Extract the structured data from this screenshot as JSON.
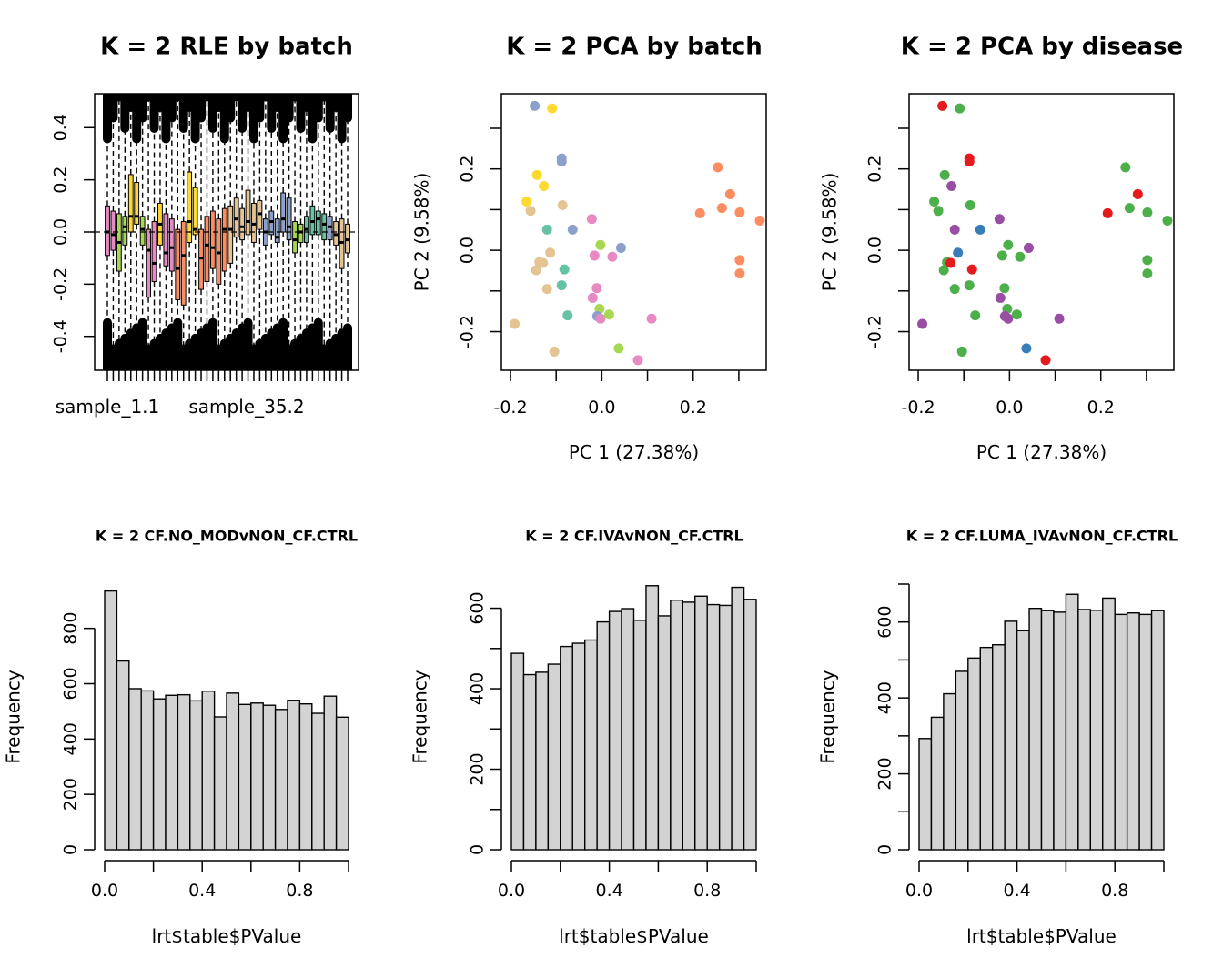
{
  "chart_data": [
    {
      "type": "boxplot",
      "title": "K = 2 RLE by batch",
      "xlabel": "",
      "ylabel": "",
      "ylim": [
        -0.53,
        0.53
      ],
      "yticks": [
        -0.4,
        -0.2,
        0.0,
        0.2,
        0.4
      ],
      "ytick_labels": [
        "-0.4",
        "-0.2",
        "0.0",
        "0.2",
        "0.4"
      ],
      "xtick_labels": [
        "sample_1.1",
        "sample_35.2"
      ],
      "hline": 0,
      "batch_colors": [
        "#E78AC3",
        "#A6D854",
        "#FFD92F",
        "#E78AC3",
        "#FC8D62",
        "#E5C494",
        "#8DA0CB",
        "#66C2A5",
        "#A6D854",
        "#E5C494"
      ],
      "boxes": [
        {
          "c": 0,
          "q1": -0.09,
          "med": 0.0,
          "q3": 0.1
        },
        {
          "c": 0,
          "q1": -0.07,
          "med": -0.01,
          "q3": 0.08
        },
        {
          "c": 1,
          "q1": -0.15,
          "med": -0.04,
          "q3": 0.07
        },
        {
          "c": 1,
          "q1": -0.05,
          "med": 0.02,
          "q3": 0.06
        },
        {
          "c": 2,
          "q1": 0.0,
          "med": 0.06,
          "q3": 0.22
        },
        {
          "c": 2,
          "q1": 0.03,
          "med": 0.06,
          "q3": 0.19
        },
        {
          "c": 1,
          "q1": -0.05,
          "med": 0.01,
          "q3": 0.06
        },
        {
          "c": 0,
          "q1": -0.25,
          "med": -0.07,
          "q3": 0.01
        },
        {
          "c": 0,
          "q1": -0.19,
          "med": -0.12,
          "q3": 0.04
        },
        {
          "c": 2,
          "q1": -0.05,
          "med": 0.03,
          "q3": 0.11
        },
        {
          "c": 0,
          "q1": -0.13,
          "med": -0.08,
          "q3": 0.07
        },
        {
          "c": 0,
          "q1": -0.15,
          "med": -0.06,
          "q3": 0.05
        },
        {
          "c": 4,
          "q1": -0.26,
          "med": -0.14,
          "q3": 0.01
        },
        {
          "c": 4,
          "q1": -0.28,
          "med": -0.09,
          "q3": 0.04
        },
        {
          "c": 2,
          "q1": -0.04,
          "med": 0.04,
          "q3": 0.23
        },
        {
          "c": 2,
          "q1": -0.01,
          "med": 0.01,
          "q3": 0.17
        },
        {
          "c": 4,
          "q1": -0.22,
          "med": -0.1,
          "q3": 0.01
        },
        {
          "c": 4,
          "q1": -0.19,
          "med": -0.05,
          "q3": 0.06
        },
        {
          "c": 4,
          "q1": -0.14,
          "med": -0.06,
          "q3": 0.08
        },
        {
          "c": 4,
          "q1": -0.2,
          "med": -0.08,
          "q3": 0.05
        },
        {
          "c": 4,
          "q1": -0.15,
          "med": 0.01,
          "q3": 0.09
        },
        {
          "c": 5,
          "q1": -0.12,
          "med": 0.01,
          "q3": 0.1
        },
        {
          "c": 5,
          "q1": -0.02,
          "med": 0.05,
          "q3": 0.13
        },
        {
          "c": 5,
          "q1": -0.03,
          "med": 0.02,
          "q3": 0.09
        },
        {
          "c": 5,
          "q1": -0.01,
          "med": 0.04,
          "q3": 0.16
        },
        {
          "c": 5,
          "q1": -0.04,
          "med": 0.03,
          "q3": 0.11
        },
        {
          "c": 5,
          "q1": 0.01,
          "med": 0.07,
          "q3": 0.12
        },
        {
          "c": 6,
          "q1": -0.05,
          "med": 0.0,
          "q3": 0.05
        },
        {
          "c": 6,
          "q1": -0.01,
          "med": 0.04,
          "q3": 0.08
        },
        {
          "c": 6,
          "q1": -0.04,
          "med": -0.02,
          "q3": 0.05
        },
        {
          "c": 6,
          "q1": 0.0,
          "med": 0.05,
          "q3": 0.15
        },
        {
          "c": 6,
          "q1": -0.03,
          "med": 0.02,
          "q3": 0.13
        },
        {
          "c": 8,
          "q1": -0.08,
          "med": -0.03,
          "q3": 0.04
        },
        {
          "c": 8,
          "q1": -0.04,
          "med": 0.0,
          "q3": 0.03
        },
        {
          "c": 7,
          "q1": -0.04,
          "med": 0.01,
          "q3": 0.06
        },
        {
          "c": 7,
          "q1": -0.01,
          "med": 0.04,
          "q3": 0.1
        },
        {
          "c": 7,
          "q1": -0.01,
          "med": 0.05,
          "q3": 0.08
        },
        {
          "c": 7,
          "q1": -0.03,
          "med": 0.03,
          "q3": 0.07
        },
        {
          "c": 6,
          "q1": -0.03,
          "med": 0.02,
          "q3": 0.06
        },
        {
          "c": 9,
          "q1": -0.05,
          "med": -0.01,
          "q3": 0.04
        },
        {
          "c": 9,
          "q1": -0.14,
          "med": -0.04,
          "q3": 0.05
        },
        {
          "c": 9,
          "q1": -0.08,
          "med": -0.03,
          "q3": 0.03
        }
      ]
    },
    {
      "type": "scatter",
      "title": "K = 2 PCA by batch",
      "xlabel": "PC 1 (27.38%)",
      "ylabel": "PC 2 (9.58%)",
      "xlim": [
        -0.22,
        0.36
      ],
      "ylim": [
        -0.295,
        0.385
      ],
      "xticks": [
        -0.2,
        0.0,
        0.2
      ],
      "xtick_labels": [
        "-0.2",
        "0.0",
        "0.2"
      ],
      "yticks": [
        -0.2,
        0.0,
        0.2
      ],
      "ytick_labels": [
        "-0.2",
        "0.0",
        "0.2"
      ],
      "points": [
        {
          "x": -0.147,
          "y": 0.355,
          "color": "#8DA0CB"
        },
        {
          "x": -0.109,
          "y": 0.349,
          "color": "#FFD92F"
        },
        {
          "x": -0.088,
          "y": 0.226,
          "color": "#8DA0CB"
        },
        {
          "x": -0.088,
          "y": 0.218,
          "color": "#8DA0CB"
        },
        {
          "x": -0.142,
          "y": 0.185,
          "color": "#FFD92F"
        },
        {
          "x": -0.127,
          "y": 0.158,
          "color": "#FFD92F"
        },
        {
          "x": -0.165,
          "y": 0.12,
          "color": "#FFD92F"
        },
        {
          "x": -0.086,
          "y": 0.111,
          "color": "#E5C494"
        },
        {
          "x": -0.156,
          "y": 0.097,
          "color": "#E5C494"
        },
        {
          "x": -0.12,
          "y": 0.051,
          "color": "#66C2A5"
        },
        {
          "x": -0.064,
          "y": 0.051,
          "color": "#8DA0CB"
        },
        {
          "x": -0.022,
          "y": 0.077,
          "color": "#E78AC3"
        },
        {
          "x": -0.003,
          "y": 0.013,
          "color": "#A6D854"
        },
        {
          "x": 0.042,
          "y": 0.006,
          "color": "#8DA0CB"
        },
        {
          "x": -0.113,
          "y": -0.006,
          "color": "#E5C494"
        },
        {
          "x": -0.016,
          "y": -0.013,
          "color": "#E78AC3"
        },
        {
          "x": 0.023,
          "y": -0.016,
          "color": "#E78AC3"
        },
        {
          "x": -0.137,
          "y": -0.029,
          "color": "#E5C494"
        },
        {
          "x": -0.129,
          "y": -0.031,
          "color": "#E5C494"
        },
        {
          "x": -0.144,
          "y": -0.049,
          "color": "#E5C494"
        },
        {
          "x": -0.082,
          "y": -0.047,
          "color": "#66C2A5"
        },
        {
          "x": -0.088,
          "y": -0.086,
          "color": "#66C2A5"
        },
        {
          "x": -0.12,
          "y": -0.095,
          "color": "#E5C494"
        },
        {
          "x": -0.011,
          "y": -0.093,
          "color": "#E78AC3"
        },
        {
          "x": -0.02,
          "y": -0.117,
          "color": "#E78AC3"
        },
        {
          "x": -0.005,
          "y": -0.144,
          "color": "#A6D854"
        },
        {
          "x": -0.075,
          "y": -0.16,
          "color": "#66C2A5"
        },
        {
          "x": -0.01,
          "y": -0.162,
          "color": "#8DA0CB"
        },
        {
          "x": -0.003,
          "y": -0.168,
          "color": "#E78AC3"
        },
        {
          "x": 0.016,
          "y": -0.158,
          "color": "#A6D854"
        },
        {
          "x": 0.109,
          "y": -0.168,
          "color": "#E78AC3"
        },
        {
          "x": -0.191,
          "y": -0.181,
          "color": "#E5C494"
        },
        {
          "x": -0.104,
          "y": -0.249,
          "color": "#E5C494"
        },
        {
          "x": 0.037,
          "y": -0.241,
          "color": "#A6D854"
        },
        {
          "x": 0.079,
          "y": -0.27,
          "color": "#E78AC3"
        },
        {
          "x": 0.254,
          "y": 0.204,
          "color": "#FC8D62"
        },
        {
          "x": 0.281,
          "y": 0.138,
          "color": "#FC8D62"
        },
        {
          "x": 0.263,
          "y": 0.104,
          "color": "#FC8D62"
        },
        {
          "x": 0.215,
          "y": 0.091,
          "color": "#FC8D62"
        },
        {
          "x": 0.302,
          "y": 0.093,
          "color": "#FC8D62"
        },
        {
          "x": 0.346,
          "y": 0.073,
          "color": "#FC8D62"
        },
        {
          "x": 0.302,
          "y": -0.024,
          "color": "#FC8D62"
        },
        {
          "x": 0.302,
          "y": -0.057,
          "color": "#FC8D62"
        }
      ]
    },
    {
      "type": "scatter",
      "title": "K = 2 PCA by disease",
      "xlabel": "PC 1 (27.38%)",
      "ylabel": "PC 2 (9.58%)",
      "xlim": [
        -0.22,
        0.36
      ],
      "ylim": [
        -0.295,
        0.385
      ],
      "xticks": [
        -0.2,
        0.0,
        0.2
      ],
      "xtick_labels": [
        "-0.2",
        "0.0",
        "0.2"
      ],
      "yticks": [
        -0.2,
        0.0,
        0.2
      ],
      "ytick_labels": [
        "-0.2",
        "0.0",
        "0.2"
      ],
      "points": [
        {
          "x": -0.147,
          "y": 0.355,
          "color": "#E41A1C"
        },
        {
          "x": -0.109,
          "y": 0.349,
          "color": "#4DAF4A"
        },
        {
          "x": -0.088,
          "y": 0.226,
          "color": "#E41A1C"
        },
        {
          "x": -0.088,
          "y": 0.218,
          "color": "#E41A1C"
        },
        {
          "x": -0.142,
          "y": 0.185,
          "color": "#4DAF4A"
        },
        {
          "x": -0.127,
          "y": 0.158,
          "color": "#984EA3"
        },
        {
          "x": -0.165,
          "y": 0.12,
          "color": "#4DAF4A"
        },
        {
          "x": -0.086,
          "y": 0.111,
          "color": "#4DAF4A"
        },
        {
          "x": -0.156,
          "y": 0.097,
          "color": "#4DAF4A"
        },
        {
          "x": -0.12,
          "y": 0.051,
          "color": "#984EA3"
        },
        {
          "x": -0.064,
          "y": 0.051,
          "color": "#377EB8"
        },
        {
          "x": -0.022,
          "y": 0.077,
          "color": "#984EA3"
        },
        {
          "x": -0.003,
          "y": 0.013,
          "color": "#4DAF4A"
        },
        {
          "x": 0.042,
          "y": 0.006,
          "color": "#984EA3"
        },
        {
          "x": -0.113,
          "y": -0.006,
          "color": "#377EB8"
        },
        {
          "x": -0.016,
          "y": -0.013,
          "color": "#4DAF4A"
        },
        {
          "x": 0.023,
          "y": -0.016,
          "color": "#4DAF4A"
        },
        {
          "x": -0.137,
          "y": -0.029,
          "color": "#4DAF4A"
        },
        {
          "x": -0.129,
          "y": -0.031,
          "color": "#E41A1C"
        },
        {
          "x": -0.144,
          "y": -0.049,
          "color": "#4DAF4A"
        },
        {
          "x": -0.082,
          "y": -0.047,
          "color": "#E41A1C"
        },
        {
          "x": -0.088,
          "y": -0.086,
          "color": "#4DAF4A"
        },
        {
          "x": -0.12,
          "y": -0.095,
          "color": "#4DAF4A"
        },
        {
          "x": -0.011,
          "y": -0.093,
          "color": "#4DAF4A"
        },
        {
          "x": -0.02,
          "y": -0.117,
          "color": "#984EA3"
        },
        {
          "x": -0.005,
          "y": -0.144,
          "color": "#4DAF4A"
        },
        {
          "x": -0.075,
          "y": -0.16,
          "color": "#4DAF4A"
        },
        {
          "x": -0.01,
          "y": -0.162,
          "color": "#984EA3"
        },
        {
          "x": -0.003,
          "y": -0.168,
          "color": "#984EA3"
        },
        {
          "x": 0.016,
          "y": -0.158,
          "color": "#4DAF4A"
        },
        {
          "x": 0.109,
          "y": -0.168,
          "color": "#984EA3"
        },
        {
          "x": -0.191,
          "y": -0.181,
          "color": "#984EA3"
        },
        {
          "x": -0.104,
          "y": -0.249,
          "color": "#4DAF4A"
        },
        {
          "x": 0.037,
          "y": -0.241,
          "color": "#377EB8"
        },
        {
          "x": 0.079,
          "y": -0.27,
          "color": "#E41A1C"
        },
        {
          "x": 0.254,
          "y": 0.204,
          "color": "#4DAF4A"
        },
        {
          "x": 0.281,
          "y": 0.138,
          "color": "#E41A1C"
        },
        {
          "x": 0.263,
          "y": 0.104,
          "color": "#4DAF4A"
        },
        {
          "x": 0.215,
          "y": 0.091,
          "color": "#E41A1C"
        },
        {
          "x": 0.302,
          "y": 0.093,
          "color": "#4DAF4A"
        },
        {
          "x": 0.346,
          "y": 0.073,
          "color": "#4DAF4A"
        },
        {
          "x": 0.302,
          "y": -0.024,
          "color": "#4DAF4A"
        },
        {
          "x": 0.302,
          "y": -0.057,
          "color": "#4DAF4A"
        }
      ]
    },
    {
      "type": "histogram",
      "title": "K = 2 CF.NO_MODvNON_CF.CTRL",
      "xlabel": "lrt$table$PValue",
      "ylabel": "Frequency",
      "bin_width": 0.05,
      "bin_start": 0.0,
      "values": [
        935,
        682,
        582,
        574,
        545,
        558,
        560,
        538,
        573,
        480,
        566,
        525,
        530,
        522,
        507,
        540,
        527,
        493,
        555,
        479
      ],
      "ylim": [
        0,
        960
      ],
      "yticks": [
        0,
        200,
        400,
        600,
        800
      ],
      "ytick_labels": [
        "0",
        "200",
        "400",
        "600",
        "800"
      ],
      "xticks": [
        0.0,
        0.2,
        0.4,
        0.6,
        0.8,
        1.0
      ],
      "xtick_labels": [
        "0.0",
        "",
        "0.4",
        "",
        "0.8",
        ""
      ],
      "bar_color": "#D3D3D3"
    },
    {
      "type": "histogram",
      "title": "K = 2 CF.IVAvNON_CF.CTRL",
      "xlabel": "lrt$table$PValue",
      "ylabel": "Frequency",
      "bin_width": 0.05,
      "bin_start": 0.0,
      "values": [
        488,
        435,
        441,
        461,
        505,
        513,
        521,
        566,
        592,
        599,
        570,
        656,
        581,
        620,
        615,
        630,
        609,
        607,
        652,
        622
      ],
      "ylim": [
        0,
        660
      ],
      "yticks": [
        0,
        100,
        200,
        300,
        400,
        500,
        600
      ],
      "ytick_labels": [
        "0",
        "",
        "200",
        "",
        "400",
        "",
        "600"
      ],
      "xticks": [
        0.0,
        0.2,
        0.4,
        0.6,
        0.8,
        1.0
      ],
      "xtick_labels": [
        "0.0",
        "",
        "0.4",
        "",
        "0.8",
        ""
      ],
      "bar_color": "#D3D3D3"
    },
    {
      "type": "histogram",
      "title": "K = 2 CF.LUMA_IVAvNON_CF.CTRL",
      "xlabel": "lrt$table$PValue",
      "ylabel": "Frequency",
      "bin_width": 0.05,
      "bin_start": 0.0,
      "values": [
        293,
        349,
        411,
        470,
        505,
        533,
        540,
        602,
        577,
        636,
        630,
        626,
        673,
        633,
        631,
        663,
        620,
        624,
        620,
        630
      ],
      "ylim": [
        0,
        700
      ],
      "yticks": [
        0,
        100,
        200,
        300,
        400,
        500,
        600,
        700
      ],
      "ytick_labels": [
        "0",
        "",
        "200",
        "",
        "400",
        "",
        "600",
        ""
      ],
      "xticks": [
        0.0,
        0.2,
        0.4,
        0.6,
        0.8,
        1.0
      ],
      "xtick_labels": [
        "0.0",
        "",
        "0.4",
        "",
        "0.8",
        ""
      ],
      "bar_color": "#D3D3D3"
    }
  ]
}
